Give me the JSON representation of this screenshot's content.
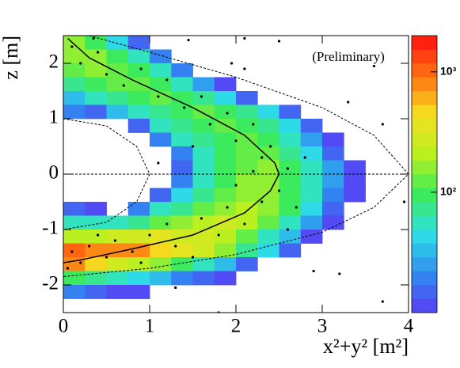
{
  "chart_data": {
    "type": "heatmap",
    "annotation": "(Preliminary)",
    "xlabel": "x²+y² [m²]",
    "ylabel": "z [m]",
    "xlim": [
      0,
      4
    ],
    "ylim": [
      -2.5,
      2.5
    ],
    "xticks": [
      0,
      1,
      2,
      3,
      4
    ],
    "yticks": [
      -2,
      -1,
      0,
      1,
      2
    ],
    "xbins": [
      0,
      0.25,
      0.5,
      0.75,
      1,
      1.25,
      1.5,
      1.75,
      2,
      2.25,
      2.5,
      2.75,
      3,
      3.25,
      3.5,
      3.75,
      4
    ],
    "ybins": [
      2.5,
      2.25,
      2,
      1.75,
      1.5,
      1.25,
      1,
      0.75,
      0.5,
      0.25,
      0,
      -0.25,
      -0.5,
      -0.75,
      -1,
      -1.25,
      -1.5,
      -1.75,
      -2,
      -2.25,
      -2.5
    ],
    "values": [
      [
        150,
        100,
        40,
        15,
        null,
        null,
        null,
        null,
        null,
        null,
        null,
        null,
        null,
        null,
        null,
        null
      ],
      [
        150,
        150,
        100,
        50,
        20,
        null,
        null,
        null,
        null,
        null,
        null,
        null,
        null,
        null,
        null,
        null
      ],
      [
        120,
        150,
        120,
        100,
        50,
        20,
        null,
        null,
        null,
        null,
        null,
        null,
        null,
        null,
        null,
        null
      ],
      [
        80,
        100,
        120,
        120,
        100,
        60,
        25,
        10,
        null,
        null,
        null,
        null,
        null,
        null,
        null,
        null
      ],
      [
        30,
        60,
        80,
        100,
        120,
        100,
        80,
        40,
        15,
        null,
        null,
        null,
        null,
        null,
        null,
        null
      ],
      [
        20,
        15,
        30,
        60,
        80,
        100,
        120,
        100,
        80,
        40,
        15,
        null,
        null,
        null,
        null,
        null
      ],
      [
        null,
        null,
        null,
        15,
        50,
        80,
        100,
        120,
        100,
        80,
        40,
        15,
        null,
        null,
        null,
        null
      ],
      [
        null,
        null,
        null,
        null,
        20,
        50,
        80,
        100,
        120,
        100,
        60,
        25,
        10,
        null,
        null,
        null
      ],
      [
        null,
        null,
        null,
        null,
        null,
        20,
        60,
        100,
        120,
        120,
        80,
        40,
        15,
        null,
        null,
        null
      ],
      [
        null,
        null,
        null,
        null,
        null,
        15,
        50,
        100,
        120,
        150,
        100,
        60,
        25,
        10,
        null,
        null
      ],
      [
        null,
        null,
        null,
        null,
        null,
        20,
        60,
        100,
        150,
        150,
        100,
        60,
        25,
        10,
        null,
        null
      ],
      [
        null,
        null,
        null,
        null,
        15,
        40,
        80,
        120,
        150,
        150,
        100,
        60,
        20,
        10,
        null,
        null
      ],
      [
        15,
        10,
        null,
        20,
        50,
        80,
        120,
        150,
        200,
        150,
        100,
        40,
        15,
        null,
        null,
        null
      ],
      [
        60,
        60,
        50,
        80,
        120,
        150,
        200,
        250,
        200,
        120,
        60,
        25,
        10,
        null,
        null,
        null
      ],
      [
        200,
        200,
        250,
        300,
        350,
        300,
        250,
        200,
        120,
        60,
        30,
        10,
        null,
        null,
        null,
        null
      ],
      [
        1000,
        900,
        800,
        700,
        500,
        350,
        250,
        150,
        80,
        40,
        15,
        null,
        null,
        null,
        null,
        null
      ],
      [
        800,
        500,
        300,
        200,
        150,
        100,
        60,
        30,
        15,
        null,
        null,
        null,
        null,
        null,
        null,
        null
      ],
      [
        100,
        80,
        60,
        40,
        30,
        20,
        15,
        10,
        null,
        null,
        null,
        null,
        null,
        null,
        null,
        null
      ],
      [
        20,
        15,
        12,
        10,
        null,
        null,
        null,
        null,
        null,
        null,
        null,
        null,
        null,
        null,
        null,
        null
      ],
      [
        null,
        null,
        null,
        null,
        null,
        null,
        null,
        null,
        null,
        null,
        null,
        null,
        null,
        null,
        null,
        null
      ]
    ],
    "zlim": [
      10,
      2000
    ],
    "zscale": "log",
    "zticks": [
      {
        "value": 100,
        "label": "10²"
      },
      {
        "value": 1000,
        "label": "10³"
      }
    ],
    "colormap": [
      "#5a3cf5",
      "#2f8cf0",
      "#2ee0e6",
      "#3cea5a",
      "#b8f020",
      "#f5e020",
      "#ff7010",
      "#ff1010"
    ],
    "points": {
      "x": [
        0.35,
        1.45,
        2.1,
        2.5,
        1.95,
        3.3,
        2.1,
        3.7,
        3.95,
        3.2,
        3.7,
        1.8,
        2.9,
        1.3,
        3.6,
        0.1,
        0.2,
        0.4,
        0.5,
        0.7,
        0.9,
        1.1,
        1.2,
        1.4,
        1.6,
        1.7,
        1.9,
        2.0,
        2.2,
        2.3,
        2.4,
        2.2,
        2.6,
        2.0,
        2.5,
        2.3,
        1.9,
        2.7,
        1.6,
        2.1,
        1.2,
        1.8,
        1.0,
        0.6,
        0.3,
        0.1,
        0.2,
        0.5,
        0.8,
        1.3,
        0.05,
        0.4,
        1.5,
        0.9,
        2.6,
        1.1,
        1.5,
        2.8
      ],
      "y": [
        2.45,
        2.42,
        2.45,
        2.4,
        2.0,
        1.3,
        1.9,
        0.9,
        -0.5,
        -1.8,
        -2.3,
        -2.5,
        -1.75,
        -2.05,
        1.95,
        2.3,
        2.0,
        2.2,
        1.8,
        1.6,
        1.9,
        1.4,
        1.7,
        1.2,
        1.4,
        0.9,
        1.1,
        0.6,
        0.9,
        0.3,
        0.5,
        0.05,
        0.1,
        -0.2,
        -0.3,
        -0.5,
        -0.6,
        -0.6,
        -0.8,
        -0.9,
        -0.9,
        -1.1,
        -1.1,
        -1.2,
        -1.3,
        -1.4,
        -1.6,
        -1.5,
        -1.4,
        -1.3,
        -1.7,
        -1.1,
        -1.5,
        -1.6,
        -1.0,
        0.2,
        0.5,
        0.3
      ]
    },
    "curves": [
      {
        "style": "solid",
        "x": [
          0.05,
          0.3,
          0.8,
          1.5,
          2.1,
          2.45,
          2.5,
          2.4,
          2.1,
          1.5,
          0.8,
          0.2,
          0
        ],
        "y": [
          2.45,
          2.1,
          1.7,
          1.2,
          0.7,
          0.2,
          0,
          -0.3,
          -0.7,
          -1.1,
          -1.35,
          -1.55,
          -1.6
        ]
      },
      {
        "style": "dashed",
        "x": [
          0.3,
          1.0,
          2.0,
          3.0,
          3.6,
          4.0,
          3.6,
          3.0,
          2.0,
          1.0,
          0
        ],
        "y": [
          2.5,
          2.2,
          1.75,
          1.2,
          0.7,
          0,
          -0.6,
          -1.05,
          -1.45,
          -1.7,
          -1.85
        ]
      },
      {
        "style": "dashed",
        "x": [
          0,
          0.5,
          0.85,
          1,
          0.85,
          0.5,
          0
        ],
        "y": [
          1,
          0.87,
          0.5,
          0,
          -0.5,
          -0.87,
          -1
        ]
      },
      {
        "style": "dashed",
        "x": [
          0,
          4
        ],
        "y": [
          0,
          0
        ]
      }
    ]
  }
}
